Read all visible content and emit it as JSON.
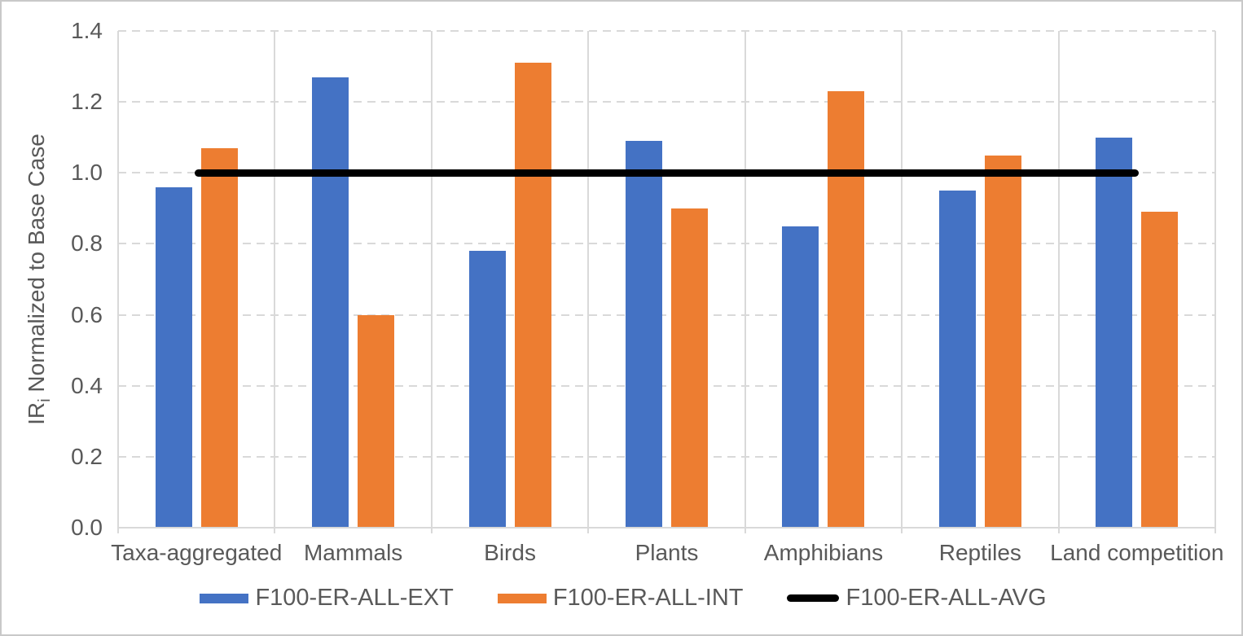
{
  "figure": {
    "background": "#FFFFFF",
    "border_color": "#C9C9C9",
    "text_color": "#595959",
    "grid_color": "#D9D9D9"
  },
  "chart_data": {
    "type": "bar",
    "title": "",
    "categories": [
      "Taxa-aggregated",
      "Mammals",
      "Birds",
      "Plants",
      "Amphibians",
      "Reptiles",
      "Land competition"
    ],
    "series": [
      {
        "name": "F100-ER-ALL-EXT",
        "chart_type": "bar",
        "color": "#4472C4",
        "values": [
          0.96,
          1.27,
          0.78,
          1.09,
          0.85,
          0.95,
          1.1
        ]
      },
      {
        "name": "F100-ER-ALL-INT",
        "chart_type": "bar",
        "color": "#ED7D31",
        "values": [
          1.07,
          0.6,
          1.31,
          0.9,
          1.23,
          1.05,
          0.89
        ]
      },
      {
        "name": "F100-ER-ALL-AVG",
        "chart_type": "line",
        "color": "#000000",
        "values": [
          1.0,
          1.0,
          1.0,
          1.0,
          1.0,
          1.0,
          1.0
        ]
      }
    ],
    "xlabel": "",
    "ylabel_prefix": "IR",
    "ylabel_subscript": "i",
    "ylabel_suffix": " Normalized to Base Case",
    "ylim": [
      0,
      1.4
    ],
    "ytick_step": 0.2,
    "yticks": [
      "0.0",
      "0.2",
      "0.4",
      "0.6",
      "0.8",
      "1.0",
      "1.2",
      "1.4"
    ],
    "grid": "horizontal dashed gridlines, vertical solid category separators",
    "legend_position": "bottom"
  }
}
